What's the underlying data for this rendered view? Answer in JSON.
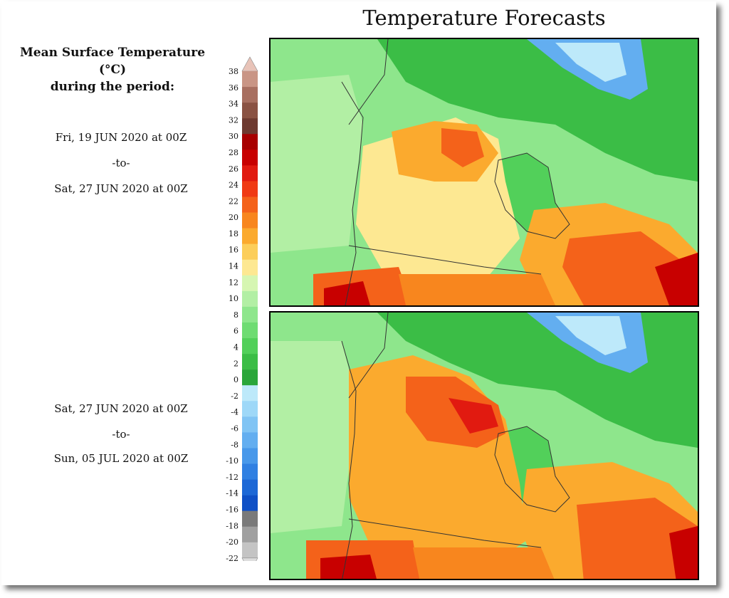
{
  "title": "Temperature Forecasts",
  "legend": {
    "title_line1": "Mean Surface Temperature (°C)",
    "title_line2": "during the period:",
    "unit": "°C",
    "ticks": [
      38,
      36,
      34,
      32,
      30,
      28,
      26,
      24,
      22,
      20,
      18,
      16,
      14,
      12,
      10,
      8,
      6,
      4,
      2,
      0,
      -2,
      -4,
      -6,
      -8,
      -10,
      -12,
      -14,
      -16,
      -18,
      -20,
      -22
    ],
    "colors": [
      "#e8c3b8",
      "#c99585",
      "#a86f60",
      "#8a5243",
      "#6e3a30",
      "#a80000",
      "#c80000",
      "#e11a10",
      "#f03a14",
      "#f4621a",
      "#f8861e",
      "#fbaa2e",
      "#fcce5a",
      "#fde892",
      "#d6f6b2",
      "#b2efa4",
      "#8ee68c",
      "#6edc72",
      "#52d05a",
      "#3bbd46",
      "#2aa63a",
      "#bde9fa",
      "#9ed8f8",
      "#80c4f4",
      "#63aef0",
      "#4898ea",
      "#3080e2",
      "#1d68d6",
      "#0f50c6",
      "#7a7a7a",
      "#a0a0a0",
      "#c4c4c4",
      "#dcdcdc"
    ]
  },
  "periods": [
    {
      "start": "Fri, 19 JUN 2020 at 00Z",
      "sep": "-to-",
      "end": "Sat, 27 JUN 2020 at 00Z"
    },
    {
      "start": "Sat, 27 JUN 2020 at 00Z",
      "sep": "-to-",
      "end": "Sun, 05 JUL 2020 at 00Z"
    }
  ]
}
